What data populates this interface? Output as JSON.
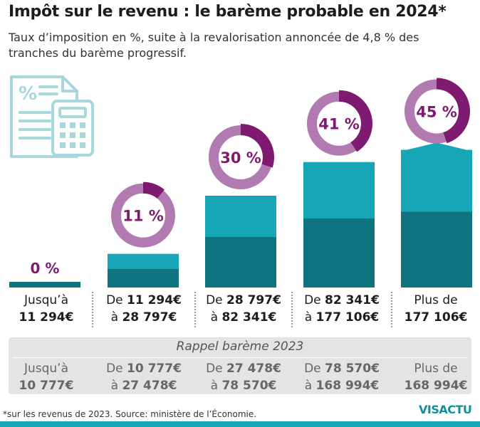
{
  "title": "Impôt sur le revenu : le barème probable en 2024*",
  "subtitle": "Taux d’imposition en %, suite à la revalorisation annoncée de 4,8 % des tranches du barème progressif.",
  "colors": {
    "bar_dark": "#0f7480",
    "bar_light": "#17a6b5",
    "donut_light": "#b17bb1",
    "donut_dark": "#7e1a70",
    "icon": "#a7d6dd"
  },
  "icon": "tax-calculator-icon",
  "chart_data": {
    "type": "bar",
    "categories": [
      "Jusqu’à 11 294€",
      "De 11 294€ à 28 797€",
      "De 28 797€ à 82 341€",
      "De 82 341€ à 177 106€",
      "Plus de 177 106€"
    ],
    "values": [
      0,
      11,
      30,
      41,
      45
    ],
    "value_labels": [
      "0 %",
      "11 %",
      "30 %",
      "41 %",
      "45 %"
    ],
    "unit": "%",
    "ylim": [
      0,
      45
    ],
    "grid": false,
    "legend": "none"
  },
  "brackets_2024": [
    {
      "line1_pre": "Jusqu’à",
      "line1_bold": "",
      "line2_pre": "",
      "line2_bold": "11 294€"
    },
    {
      "line1_pre": "De ",
      "line1_bold": "11 294€",
      "line2_pre": "à ",
      "line2_bold": "28 797€"
    },
    {
      "line1_pre": "De ",
      "line1_bold": "28 797€",
      "line2_pre": "à ",
      "line2_bold": "82 341€"
    },
    {
      "line1_pre": "De ",
      "line1_bold": "82 341€",
      "line2_pre": "à ",
      "line2_bold": "177 106€"
    },
    {
      "line1_pre": "Plus de",
      "line1_bold": "",
      "line2_pre": "",
      "line2_bold": "177 106€"
    }
  ],
  "recall": {
    "title": "Rappel barème 2023",
    "brackets": [
      {
        "line1_pre": "Jusqu’à",
        "line1_bold": "",
        "line2_pre": "",
        "line2_bold": "10 777€"
      },
      {
        "line1_pre": "De ",
        "line1_bold": "10 777€",
        "line2_pre": "à ",
        "line2_bold": "27 478€"
      },
      {
        "line1_pre": "De ",
        "line1_bold": "27 478€",
        "line2_pre": "à ",
        "line2_bold": "78 570€"
      },
      {
        "line1_pre": "De ",
        "line1_bold": "78 570€",
        "line2_pre": "à ",
        "line2_bold": "168 994€"
      },
      {
        "line1_pre": "Plus de",
        "line1_bold": "",
        "line2_pre": "",
        "line2_bold": "168 994€"
      }
    ]
  },
  "footnote": "*sur les revenus de 2023. Source: ministère de l’Économie.",
  "logo": "VISACTU"
}
